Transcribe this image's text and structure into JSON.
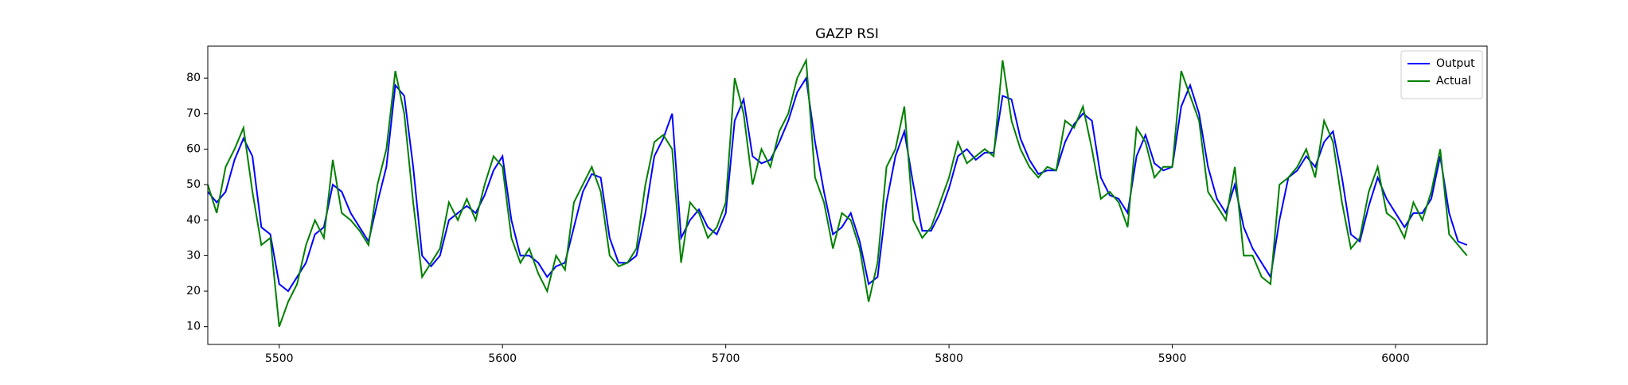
{
  "chart_data": {
    "type": "line",
    "title": "GAZP RSI",
    "x": [
      5468,
      5472,
      5476,
      5480,
      5484,
      5488,
      5492,
      5496,
      5500,
      5504,
      5508,
      5512,
      5516,
      5520,
      5524,
      5528,
      5532,
      5536,
      5540,
      5544,
      5548,
      5552,
      5556,
      5560,
      5564,
      5568,
      5572,
      5576,
      5580,
      5584,
      5588,
      5592,
      5596,
      5600,
      5604,
      5608,
      5612,
      5616,
      5620,
      5624,
      5628,
      5632,
      5636,
      5640,
      5644,
      5648,
      5652,
      5656,
      5660,
      5664,
      5668,
      5672,
      5676,
      5680,
      5684,
      5688,
      5692,
      5696,
      5700,
      5704,
      5708,
      5712,
      5716,
      5720,
      5724,
      5728,
      5732,
      5736,
      5740,
      5744,
      5748,
      5752,
      5756,
      5760,
      5764,
      5768,
      5772,
      5776,
      5780,
      5784,
      5788,
      5792,
      5796,
      5800,
      5804,
      5808,
      5812,
      5816,
      5820,
      5824,
      5828,
      5832,
      5836,
      5840,
      5844,
      5848,
      5852,
      5856,
      5860,
      5864,
      5868,
      5872,
      5876,
      5880,
      5884,
      5888,
      5892,
      5896,
      5900,
      5904,
      5908,
      5912,
      5916,
      5920,
      5924,
      5928,
      5932,
      5936,
      5940,
      5944,
      5948,
      5952,
      5956,
      5960,
      5964,
      5968,
      5972,
      5976,
      5980,
      5984,
      5988,
      5992,
      5996,
      6000,
      6004,
      6008,
      6012,
      6016,
      6020,
      6024,
      6028,
      6032
    ],
    "series": [
      {
        "name": "Output",
        "color": "#0000ff",
        "values": [
          48,
          45,
          48,
          57,
          63,
          58,
          38,
          36,
          22,
          20,
          24,
          28,
          36,
          38,
          50,
          48,
          42,
          38,
          34,
          45,
          55,
          78,
          75,
          55,
          30,
          27,
          30,
          40,
          42,
          44,
          42,
          47,
          54,
          58,
          40,
          30,
          30,
          28,
          24,
          27,
          28,
          38,
          48,
          53,
          52,
          35,
          28,
          28,
          30,
          42,
          58,
          63,
          70,
          35,
          40,
          43,
          38,
          36,
          42,
          68,
          74,
          58,
          56,
          57,
          62,
          68,
          76,
          80,
          62,
          48,
          36,
          38,
          42,
          34,
          22,
          24,
          45,
          58,
          65,
          50,
          37,
          37,
          42,
          49,
          58,
          60,
          57,
          59,
          59,
          75,
          74,
          63,
          57,
          53,
          54,
          54,
          62,
          67,
          70,
          68,
          52,
          47,
          46,
          42,
          58,
          64,
          56,
          54,
          55,
          72,
          78,
          70,
          55,
          46,
          42,
          50,
          38,
          32,
          28,
          24,
          40,
          52,
          54,
          58,
          55,
          62,
          65,
          52,
          36,
          34,
          44,
          52,
          46,
          42,
          38,
          42,
          42,
          46,
          58,
          42,
          34,
          33
        ]
      },
      {
        "name": "Actual",
        "color": "#008000",
        "values": [
          50,
          42,
          55,
          60,
          66,
          48,
          33,
          35,
          10,
          17,
          22,
          33,
          40,
          35,
          57,
          42,
          40,
          37,
          33,
          50,
          60,
          82,
          70,
          45,
          24,
          28,
          32,
          45,
          40,
          46,
          40,
          50,
          58,
          55,
          35,
          28,
          32,
          25,
          20,
          30,
          26,
          45,
          50,
          55,
          48,
          30,
          27,
          28,
          32,
          50,
          62,
          64,
          60,
          28,
          45,
          42,
          35,
          38,
          45,
          80,
          70,
          50,
          60,
          55,
          65,
          70,
          80,
          85,
          52,
          45,
          32,
          42,
          40,
          32,
          17,
          28,
          55,
          60,
          72,
          40,
          35,
          38,
          45,
          52,
          62,
          56,
          58,
          60,
          58,
          85,
          68,
          60,
          55,
          52,
          55,
          54,
          68,
          66,
          72,
          60,
          46,
          48,
          45,
          38,
          66,
          62,
          52,
          55,
          55,
          82,
          75,
          68,
          48,
          44,
          40,
          55,
          30,
          30,
          24,
          22,
          50,
          52,
          55,
          60,
          52,
          68,
          62,
          45,
          32,
          35,
          48,
          55,
          42,
          40,
          35,
          45,
          40,
          48,
          60,
          36,
          33,
          30
        ]
      }
    ],
    "xlim": [
      5468,
      6041
    ],
    "ylim": [
      5,
      89
    ],
    "xticks": [
      5500,
      5600,
      5700,
      5800,
      5900,
      6000
    ],
    "yticks": [
      10,
      20,
      30,
      40,
      50,
      60,
      70,
      80
    ],
    "grid": false,
    "legend": "upper right"
  }
}
